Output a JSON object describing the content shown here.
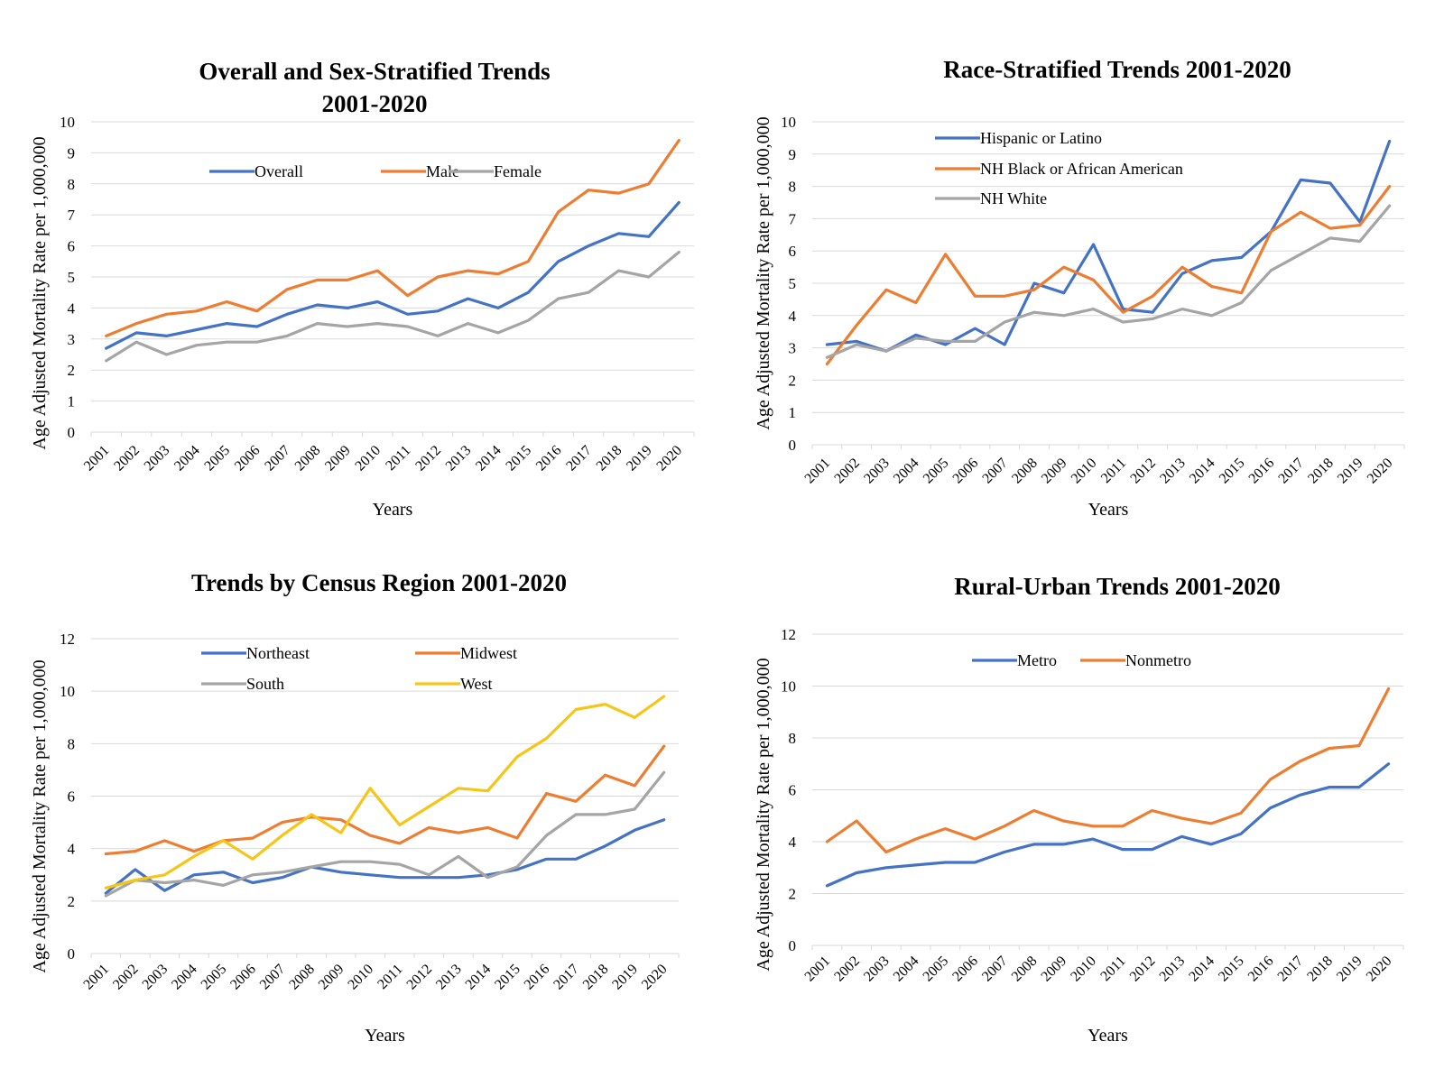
{
  "chart_data": [
    {
      "type": "line",
      "title": "Overall and Sex-Stratified Trends",
      "subtitle": "2001-2020",
      "xlabel": "Years",
      "ylabel": "Age Adjusted Mortality Rate per 1,000,000",
      "ylim": [
        0,
        10
      ],
      "yticks": [
        "0",
        "1",
        "2",
        "3",
        "4",
        "5",
        "6",
        "7",
        "8",
        "9",
        "10"
      ],
      "grid": true,
      "legend_position": "top",
      "categories": [
        "2001",
        "2002",
        "2003",
        "2004",
        "2005",
        "2006",
        "2007",
        "2008",
        "2009",
        "2010",
        "2011",
        "2012",
        "2013",
        "2014",
        "2015",
        "2016",
        "2017",
        "2018",
        "2019",
        "2020"
      ],
      "series": [
        {
          "name": "Overall",
          "color": "#4472C4",
          "values": [
            2.7,
            3.2,
            3.1,
            3.3,
            3.5,
            3.4,
            3.8,
            4.1,
            4.0,
            4.2,
            3.8,
            3.9,
            4.3,
            4.0,
            4.5,
            5.5,
            6.0,
            6.4,
            6.3,
            7.4
          ]
        },
        {
          "name": "Male",
          "color": "#ED7D31",
          "values": [
            3.1,
            3.5,
            3.8,
            3.9,
            4.2,
            3.9,
            4.6,
            4.9,
            4.9,
            5.2,
            4.4,
            5.0,
            5.2,
            5.1,
            5.5,
            7.1,
            7.8,
            7.7,
            8.0,
            9.4
          ]
        },
        {
          "name": "Female",
          "color": "#A5A5A5",
          "values": [
            2.3,
            2.9,
            2.5,
            2.8,
            2.9,
            2.9,
            3.1,
            3.5,
            3.4,
            3.5,
            3.4,
            3.1,
            3.5,
            3.2,
            3.6,
            4.3,
            4.5,
            5.2,
            5.0,
            5.8
          ]
        }
      ]
    },
    {
      "type": "line",
      "title": "Race-Stratified Trends 2001-2020",
      "subtitle": "",
      "xlabel": "Years",
      "ylabel": "Age Adjusted Mortality Rate per 1,000,000",
      "ylim": [
        0,
        10
      ],
      "yticks": [
        "0",
        "1",
        "2",
        "3",
        "4",
        "5",
        "6",
        "7",
        "8",
        "9",
        "10"
      ],
      "grid": true,
      "legend_position": "top-left",
      "categories": [
        "2001",
        "2002",
        "2003",
        "2004",
        "2005",
        "2006",
        "2007",
        "2008",
        "2009",
        "2010",
        "2011",
        "2012",
        "2013",
        "2014",
        "2015",
        "2016",
        "2017",
        "2018",
        "2019",
        "2020"
      ],
      "series": [
        {
          "name": "Hispanic or Latino",
          "color": "#4472C4",
          "values": [
            3.1,
            3.2,
            2.9,
            3.4,
            3.1,
            3.6,
            3.1,
            5.0,
            4.7,
            6.2,
            4.2,
            4.1,
            5.3,
            5.7,
            5.8,
            6.6,
            8.2,
            8.1,
            6.9,
            9.4
          ]
        },
        {
          "name": "NH Black or African American",
          "color": "#ED7D31",
          "values": [
            2.5,
            3.7,
            4.8,
            4.4,
            5.9,
            4.6,
            4.6,
            4.8,
            5.5,
            5.1,
            4.1,
            4.6,
            5.5,
            4.9,
            4.7,
            6.6,
            7.2,
            6.7,
            6.8,
            8.0
          ]
        },
        {
          "name": "NH White",
          "color": "#A5A5A5",
          "values": [
            2.7,
            3.1,
            2.9,
            3.3,
            3.2,
            3.2,
            3.8,
            4.1,
            4.0,
            4.2,
            3.8,
            3.9,
            4.2,
            4.0,
            4.4,
            5.4,
            5.9,
            6.4,
            6.3,
            7.4
          ]
        }
      ]
    },
    {
      "type": "line",
      "title": "Trends by Census Region 2001-2020",
      "subtitle": "",
      "xlabel": "Years",
      "ylabel": "Age Adjusted Mortality Rate per 1,000,000",
      "ylim": [
        0,
        12
      ],
      "yticks": [
        "0",
        "2",
        "4",
        "6",
        "8",
        "10",
        "12"
      ],
      "grid": true,
      "legend_position": "top",
      "categories": [
        "2001",
        "2002",
        "2003",
        "2004",
        "2005",
        "2006",
        "2007",
        "2008",
        "2009",
        "2010",
        "2011",
        "2012",
        "2013",
        "2014",
        "2015",
        "2016",
        "2017",
        "2018",
        "2019",
        "2020"
      ],
      "series": [
        {
          "name": "Northeast",
          "color": "#4472C4",
          "values": [
            2.3,
            3.2,
            2.4,
            3.0,
            3.1,
            2.7,
            2.9,
            3.3,
            3.1,
            3.0,
            2.9,
            2.9,
            2.9,
            3.0,
            3.2,
            3.6,
            3.6,
            4.1,
            4.7,
            5.1
          ]
        },
        {
          "name": "Midwest",
          "color": "#ED7D31",
          "values": [
            3.8,
            3.9,
            4.3,
            3.9,
            4.3,
            4.4,
            5.0,
            5.2,
            5.1,
            4.5,
            4.2,
            4.8,
            4.6,
            4.8,
            4.4,
            6.1,
            5.8,
            6.8,
            6.4,
            7.9
          ]
        },
        {
          "name": "South",
          "color": "#A5A5A5",
          "values": [
            2.2,
            2.8,
            2.7,
            2.8,
            2.6,
            3.0,
            3.1,
            3.3,
            3.5,
            3.5,
            3.4,
            3.0,
            3.7,
            2.9,
            3.3,
            4.5,
            5.3,
            5.3,
            5.5,
            6.9
          ]
        },
        {
          "name": "West",
          "color": "#F5C518",
          "values": [
            2.5,
            2.8,
            3.0,
            3.7,
            4.3,
            3.6,
            4.5,
            5.3,
            4.6,
            6.3,
            4.9,
            5.6,
            6.3,
            6.2,
            7.5,
            8.2,
            9.3,
            9.5,
            9.0,
            9.8
          ]
        }
      ]
    },
    {
      "type": "line",
      "title": "Rural-Urban Trends 2001-2020",
      "subtitle": "",
      "xlabel": "Years",
      "ylabel": "Age Adjusted Mortality Rate per 1,000,000",
      "ylim": [
        0,
        12
      ],
      "yticks": [
        "0",
        "2",
        "4",
        "6",
        "8",
        "10",
        "12"
      ],
      "grid": true,
      "legend_position": "top",
      "categories": [
        "2001",
        "2002",
        "2003",
        "2004",
        "2005",
        "2006",
        "2007",
        "2008",
        "2009",
        "2010",
        "2011",
        "2012",
        "2013",
        "2014",
        "2015",
        "2016",
        "2017",
        "2018",
        "2019",
        "2020"
      ],
      "series": [
        {
          "name": "Metro",
          "color": "#4472C4",
          "values": [
            2.3,
            2.8,
            3.0,
            3.1,
            3.2,
            3.2,
            3.6,
            3.9,
            3.9,
            4.1,
            3.7,
            3.7,
            4.2,
            3.9,
            4.3,
            5.3,
            5.8,
            6.1,
            6.1,
            7.0
          ]
        },
        {
          "name": "Nonmetro",
          "color": "#ED7D31",
          "values": [
            4.0,
            4.8,
            3.6,
            4.1,
            4.5,
            4.1,
            4.6,
            5.2,
            4.8,
            4.6,
            4.6,
            5.2,
            4.9,
            4.7,
            5.1,
            6.4,
            7.1,
            7.6,
            7.7,
            9.9
          ]
        }
      ]
    }
  ]
}
